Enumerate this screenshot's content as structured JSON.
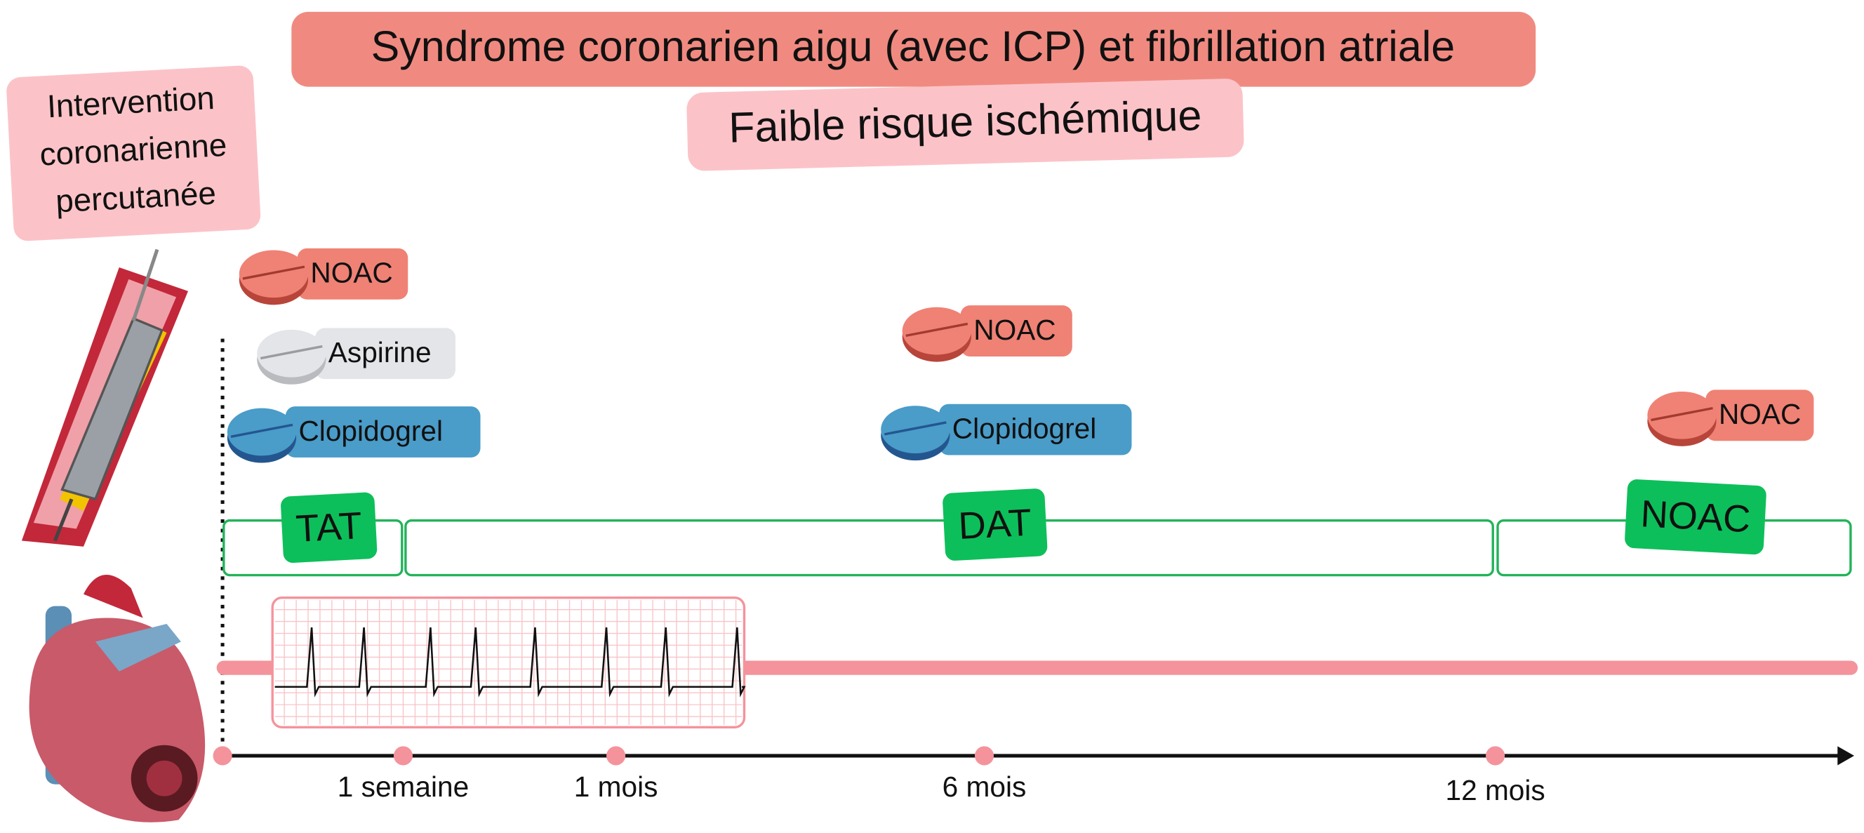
{
  "title": "Syndrome coronarien aigu (avec ICP) et fibrillation atriale",
  "subtitle": "Faible risque ischémique",
  "procedure": {
    "label_lines": [
      "Intervention",
      "coronarienne",
      "percutanée"
    ]
  },
  "treatments": [
    {
      "drugs": [
        "NOAC",
        "Aspirine",
        "Clopidogrel"
      ]
    },
    {
      "drugs": [
        "NOAC",
        "Clopidogrel"
      ]
    },
    {
      "drugs": [
        "NOAC"
      ]
    }
  ],
  "phases": [
    "TAT",
    "DAT",
    "NOAC"
  ],
  "timeline": {
    "labels": [
      "1 semaine",
      "1 mois",
      "6 mois",
      "12 mois"
    ]
  }
}
